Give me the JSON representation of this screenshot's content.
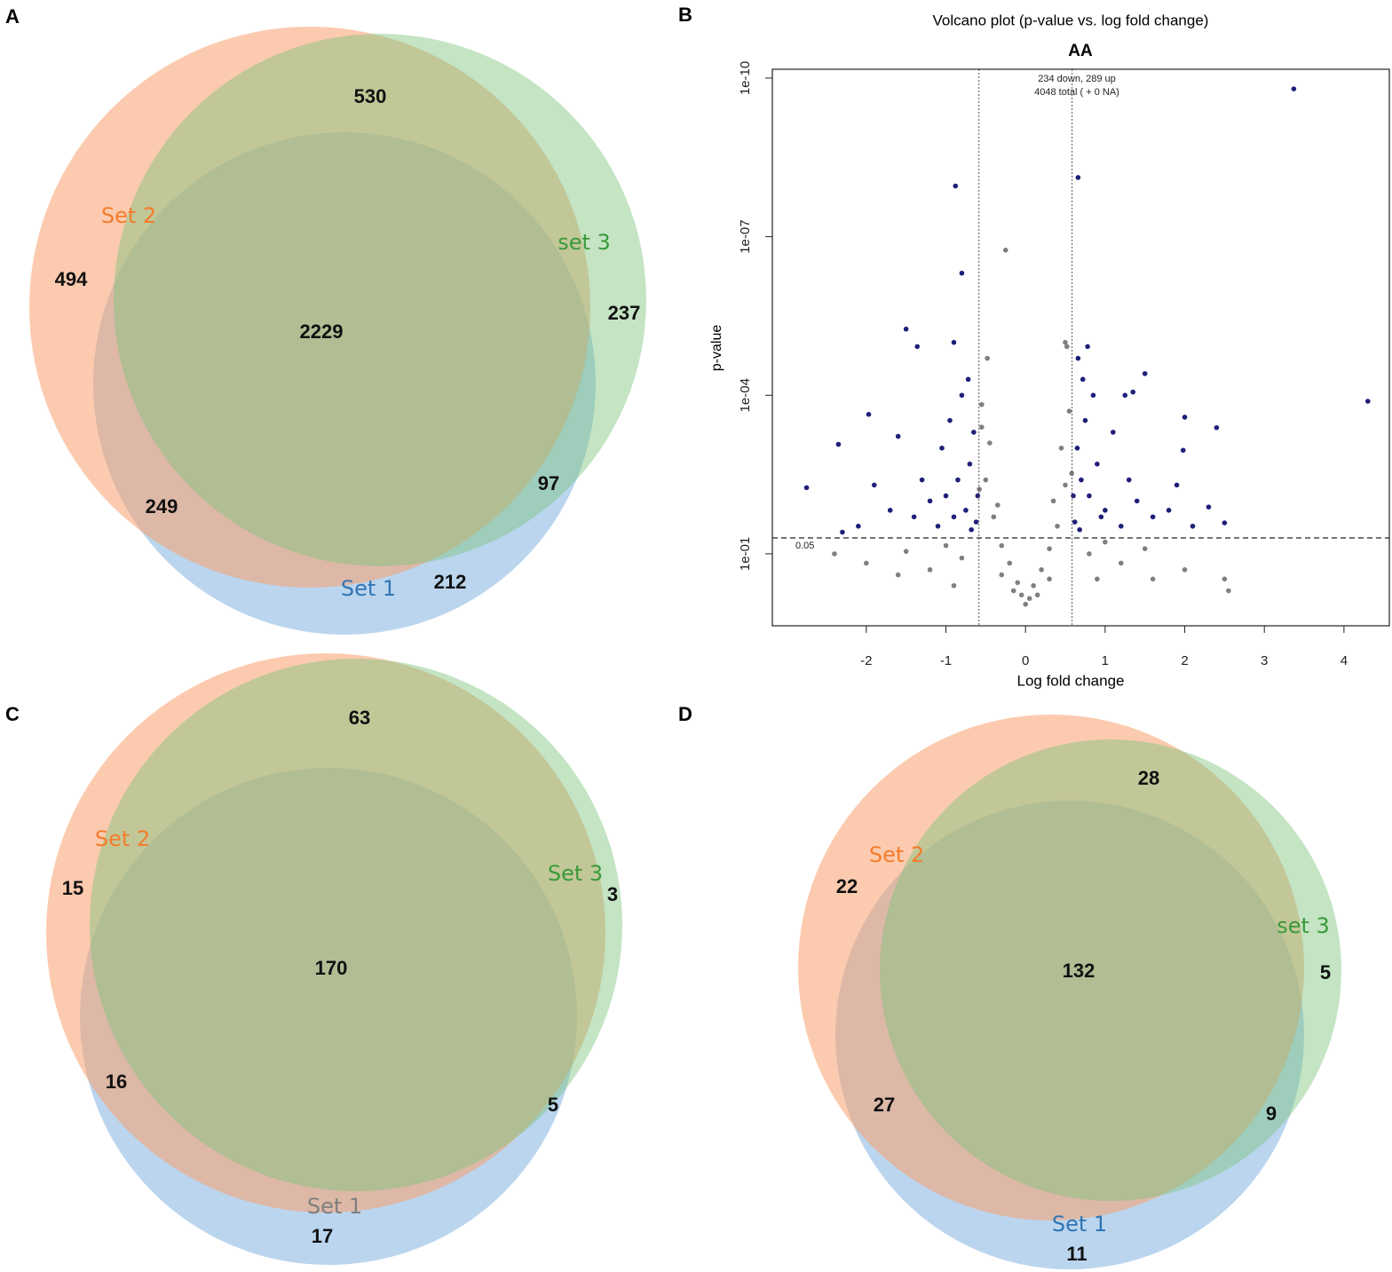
{
  "chart_data": [
    {
      "type": "venn",
      "panel": "A",
      "sets": [
        {
          "name": "Set 1",
          "color": "#2f75b5"
        },
        {
          "name": "Set 2",
          "color": "#f47c2c"
        },
        {
          "name": "set 3",
          "color": "#3a9a3a"
        }
      ],
      "values": [
        2229,
        530,
        494,
        237,
        249,
        97,
        212
      ]
    },
    {
      "type": "scatter",
      "panel": "B",
      "title": "Volcano plot (p-value vs. log fold change)",
      "subtitle": "AA",
      "x_label": "Log fold change",
      "y_label": "p-value",
      "annotations": [
        "234 down,  289 up",
        "4048 total ( + 0 NA)"
      ],
      "xlim": [
        -3.18,
        4.57
      ],
      "xticks": [
        -2,
        -1,
        0,
        1,
        2,
        3,
        4
      ],
      "ylim": [
        2.3,
        6.8e-11
      ],
      "y_log": true,
      "yticks": [
        {
          "value": 1e-10,
          "label": "1e-10"
        },
        {
          "value": 1e-07,
          "label": "1e-07"
        },
        {
          "value": 0.0001,
          "label": "1e-04"
        },
        {
          "value": 0.1,
          "label": "1e-01"
        }
      ],
      "vlines": [
        -0.585,
        0.585
      ],
      "hline": 0.05,
      "series": [
        {
          "color": "#7f7f7f",
          "x": [
            0,
            0.05,
            -0.05,
            0.1,
            -0.1,
            0.2,
            -0.2,
            0.3,
            -0.3,
            0.4,
            -0.4,
            0.5,
            -0.5,
            0.45,
            -0.45,
            0.55,
            -0.55,
            0.5,
            -0.48,
            0.52,
            -0.55,
            0.35,
            -0.35,
            0.8,
            -0.8,
            1.2,
            -1.2,
            1.6,
            -1.6,
            2.0,
            -2.0,
            2.5,
            2.55,
            -2.4,
            0.9,
            -0.9,
            0.3,
            -0.3,
            1.0,
            -1.0,
            0.58,
            -0.58,
            -0.25,
            0.15,
            -0.15,
            1.5,
            -1.5
          ],
          "values": [
            0.9,
            0.7,
            0.6,
            0.4,
            0.35,
            0.2,
            0.15,
            0.08,
            0.07,
            0.03,
            0.02,
            0.005,
            0.004,
            0.001,
            0.0008,
            0.0002,
            0.00015,
            1e-05,
            2e-05,
            1.2e-05,
            0.0004,
            0.01,
            0.012,
            0.1,
            0.12,
            0.15,
            0.2,
            0.3,
            0.25,
            0.2,
            0.15,
            0.3,
            0.5,
            0.1,
            0.3,
            0.4,
            0.3,
            0.25,
            0.06,
            0.07,
            0.003,
            0.006,
            1.8e-07,
            0.6,
            0.5,
            0.08,
            0.09
          ]
        },
        {
          "color": "#1f1f7a",
          "x": [
            3.37,
            0.66,
            -0.88,
            -0.8,
            4.3,
            -2.75,
            -2.35,
            -1.97,
            -1.5,
            -1.36,
            -1.6,
            -0.9,
            1.5,
            2.0,
            2.4,
            1.35,
            0.78,
            1.98,
            2.3,
            2.5,
            -2.3,
            -1.05,
            -0.95,
            -0.7,
            -0.65,
            -0.85,
            -1.0,
            -0.75,
            -0.62,
            -1.1,
            -0.9,
            -0.68,
            -1.2,
            -1.4,
            -1.7,
            -1.9,
            -2.1,
            -1.3,
            -0.8,
            -0.72,
            -0.6,
            0.65,
            0.75,
            0.9,
            1.1,
            0.7,
            0.8,
            1.0,
            0.62,
            1.2,
            0.95,
            0.68,
            1.4,
            1.6,
            1.8,
            1.9,
            2.1,
            1.3,
            0.85,
            0.72,
            0.6,
            1.25,
            0.66
          ],
          "values": [
            1.6e-10,
            7.6e-09,
            1.1e-08,
            4.9e-07,
            0.00013,
            0.0056,
            0.00085,
            0.00023,
            5.6e-06,
            1.2e-05,
            0.0006,
            1e-05,
            3.9e-05,
            0.00026,
            0.00041,
            8.7e-05,
            1.2e-05,
            0.0011,
            0.013,
            0.026,
            0.039,
            0.001,
            0.0003,
            0.002,
            0.0005,
            0.004,
            0.008,
            0.015,
            0.025,
            0.03,
            0.02,
            0.035,
            0.01,
            0.02,
            0.015,
            0.005,
            0.03,
            0.004,
            0.0001,
            5e-05,
            0.008,
            0.001,
            0.0003,
            0.002,
            0.0005,
            0.004,
            0.008,
            0.015,
            0.025,
            0.03,
            0.02,
            0.035,
            0.01,
            0.02,
            0.015,
            0.005,
            0.03,
            0.004,
            0.0001,
            5e-05,
            0.008,
            0.0001,
            2e-05
          ]
        }
      ]
    },
    {
      "type": "venn",
      "panel": "C",
      "sets": [
        {
          "name": "Set 1",
          "color": "#7f7f7f"
        },
        {
          "name": "Set 2",
          "color": "#f47c2c"
        },
        {
          "name": "Set 3",
          "color": "#3a9a3a"
        }
      ],
      "values": [
        170,
        63,
        15,
        3,
        16,
        5,
        17
      ]
    },
    {
      "type": "venn",
      "panel": "D",
      "sets": [
        {
          "name": "Set 1",
          "color": "#2f75b5"
        },
        {
          "name": "Set 2",
          "color": "#f47c2c"
        },
        {
          "name": "set 3",
          "color": "#3a9a3a"
        }
      ],
      "values": [
        132,
        28,
        22,
        5,
        27,
        9,
        11
      ]
    }
  ]
}
